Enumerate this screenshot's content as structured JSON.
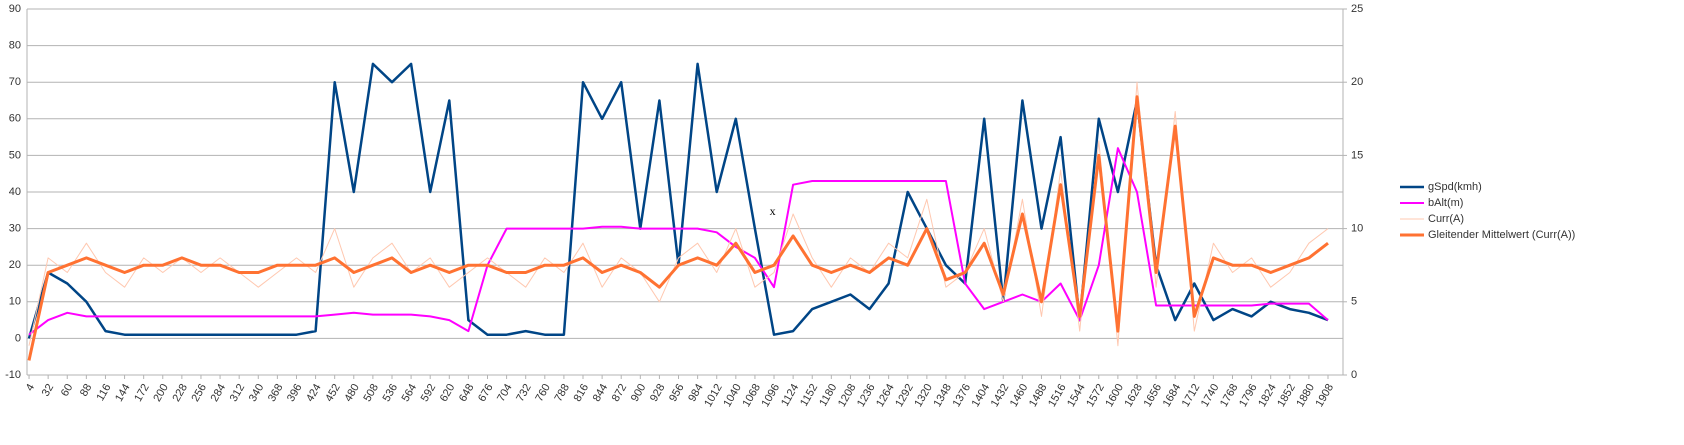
{
  "chart_data": {
    "type": "line",
    "x": [
      4,
      32,
      60,
      88,
      116,
      144,
      172,
      200,
      228,
      256,
      284,
      312,
      340,
      368,
      396,
      424,
      452,
      480,
      508,
      536,
      564,
      592,
      620,
      648,
      676,
      704,
      732,
      760,
      788,
      816,
      844,
      872,
      900,
      928,
      956,
      984,
      1012,
      1040,
      1068,
      1096,
      1124,
      1152,
      1180,
      1208,
      1236,
      1264,
      1292,
      1320,
      1348,
      1376,
      1404,
      1432,
      1460,
      1488,
      1516,
      1544,
      1572,
      1600,
      1628,
      1656,
      1684,
      1712,
      1740,
      1768,
      1796,
      1824,
      1852,
      1880,
      1908
    ],
    "xlim": [
      1,
      1930
    ],
    "xticks": [
      4,
      32,
      60,
      88,
      116,
      144,
      172,
      200,
      228,
      256,
      284,
      312,
      340,
      368,
      396,
      424,
      452,
      480,
      508,
      536,
      564,
      592,
      620,
      648,
      676,
      704,
      732,
      760,
      788,
      816,
      844,
      872,
      900,
      928,
      956,
      984,
      1012,
      1040,
      1068,
      1096,
      1124,
      1152,
      1180,
      1208,
      1236,
      1264,
      1292,
      1320,
      1348,
      1376,
      1404,
      1432,
      1460,
      1488,
      1516,
      1544,
      1572,
      1600,
      1628,
      1656,
      1684,
      1712,
      1740,
      1768,
      1796,
      1824,
      1852,
      1880,
      1908
    ],
    "ylim": [
      -10,
      90
    ],
    "yticks": [
      -10,
      0,
      10,
      20,
      30,
      40,
      50,
      60,
      70,
      80,
      90
    ],
    "y2lim": [
      0,
      25
    ],
    "y2ticks": [
      0,
      5,
      10,
      15,
      20,
      25
    ],
    "grid": true,
    "legend": "right",
    "series": [
      {
        "name": "gSpd(kmh)",
        "color": "#004586",
        "width": 2.5,
        "values": [
          0,
          18,
          15,
          10,
          2,
          1,
          1,
          1,
          1,
          1,
          1,
          1,
          1,
          1,
          1,
          2,
          70,
          40,
          75,
          70,
          75,
          40,
          65,
          5,
          1,
          1,
          2,
          1,
          1,
          70,
          60,
          70,
          30,
          65,
          20,
          75,
          40,
          60,
          30,
          1,
          2,
          8,
          10,
          12,
          8,
          15,
          40,
          30,
          20,
          15,
          60,
          10,
          65,
          30,
          55,
          5,
          60,
          40,
          65,
          20,
          5,
          15,
          5,
          8,
          6,
          10,
          8,
          7,
          5
        ]
      },
      {
        "name": "bAlt(m)",
        "color": "#ff00ff",
        "width": 2,
        "values": [
          1,
          5,
          7,
          6,
          6,
          6,
          6,
          6,
          6,
          6,
          6,
          6,
          6,
          6,
          6,
          6,
          6.5,
          7,
          6.5,
          6.5,
          6.5,
          6,
          5,
          2,
          20,
          30,
          30,
          30,
          30,
          30,
          30.5,
          30.5,
          30,
          30,
          30,
          30,
          29,
          25,
          22,
          14,
          42,
          43,
          43,
          43,
          43,
          43,
          43,
          43,
          43,
          15,
          8,
          10,
          12,
          10,
          15,
          5,
          20,
          52,
          40,
          9,
          9,
          9,
          9,
          9,
          9,
          9.5,
          9.5,
          9.5,
          5
        ]
      },
      {
        "name": "Curr(A)",
        "color": "#ffc8b0",
        "width": 1,
        "axis": "y2",
        "values": [
          2,
          8,
          7,
          9,
          7,
          6,
          8,
          7,
          8,
          7,
          8,
          7,
          6,
          7,
          8,
          7,
          10,
          6,
          8,
          9,
          7,
          8,
          6,
          7,
          8,
          7,
          6,
          8,
          7,
          9,
          6,
          8,
          7,
          5,
          8,
          9,
          7,
          10,
          6,
          7,
          11,
          8,
          6,
          8,
          7,
          9,
          8,
          12,
          6,
          7,
          10,
          5,
          12,
          4,
          14,
          3,
          16,
          2,
          20,
          6,
          18,
          3,
          9,
          7,
          8,
          6,
          7,
          9,
          10
        ]
      },
      {
        "name": "Gleitender Mittelwert (Curr(A))",
        "color": "#ff7232",
        "width": 3,
        "axis": "y2",
        "values": [
          1,
          7,
          7.5,
          8,
          7.5,
          7,
          7.5,
          7.5,
          8,
          7.5,
          7.5,
          7,
          7,
          7.5,
          7.5,
          7.5,
          8,
          7,
          7.5,
          8,
          7,
          7.5,
          7,
          7.5,
          7.5,
          7,
          7,
          7.5,
          7.5,
          8,
          7,
          7.5,
          7,
          6,
          7.5,
          8,
          7.5,
          9,
          7,
          7.5,
          9.5,
          7.5,
          7,
          7.5,
          7,
          8,
          7.5,
          10,
          6.5,
          7,
          9,
          5.5,
          11,
          5,
          13,
          4,
          15,
          3,
          19,
          7,
          17,
          4,
          8,
          7.5,
          7.5,
          7,
          7.5,
          8,
          9
        ]
      }
    ],
    "annotations": [
      {
        "text": "x",
        "x": 1094,
        "y": 34.5
      }
    ]
  }
}
